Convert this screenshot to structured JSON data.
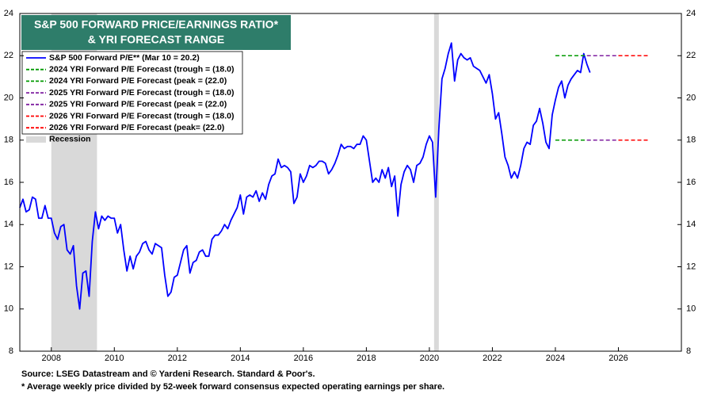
{
  "chart_data": {
    "type": "line",
    "title": [
      "S&P 500 FORWARD PRICE/EARNINGS RATIO*",
      "& YRI FORECAST RANGE"
    ],
    "notes": [
      "Source: LSEG Datastream and © Yardeni Research. Standard & Poor's.",
      "* Average weekly price divided by 52-week forward consensus expected operating earnings per share."
    ],
    "xlim": [
      2007,
      2028
    ],
    "xticks": [
      2008,
      2010,
      2012,
      2014,
      2016,
      2018,
      2020,
      2022,
      2024,
      2026
    ],
    "ylim": [
      8,
      24
    ],
    "yticks": [
      8,
      10,
      12,
      14,
      16,
      18,
      20,
      22,
      24
    ],
    "y2lim": [
      8,
      24
    ],
    "y2ticks": [
      8,
      10,
      12,
      14,
      16,
      18,
      20,
      22,
      24
    ],
    "grid": false,
    "legend": "upper left",
    "recession": {
      "name": "Recession",
      "color": "#d9d9d9",
      "ranges": [
        [
          2008.0,
          2009.45
        ],
        [
          2020.15,
          2020.3
        ]
      ]
    },
    "series": [
      {
        "name": "S&P 500 Forward P/E** (Mar 10 = 20.2)",
        "color": "#0000ff",
        "style": "solid",
        "x": [
          2007.0,
          2007.1,
          2007.2,
          2007.3,
          2007.4,
          2007.5,
          2007.6,
          2007.7,
          2007.8,
          2007.9,
          2008.0,
          2008.1,
          2008.2,
          2008.3,
          2008.4,
          2008.5,
          2008.6,
          2008.7,
          2008.8,
          2008.9,
          2009.0,
          2009.1,
          2009.2,
          2009.3,
          2009.4,
          2009.5,
          2009.6,
          2009.7,
          2009.8,
          2009.9,
          2010.0,
          2010.1,
          2010.2,
          2010.3,
          2010.4,
          2010.5,
          2010.6,
          2010.7,
          2010.8,
          2010.9,
          2011.0,
          2011.1,
          2011.2,
          2011.3,
          2011.4,
          2011.5,
          2011.6,
          2011.7,
          2011.8,
          2011.9,
          2012.0,
          2012.1,
          2012.2,
          2012.3,
          2012.4,
          2012.5,
          2012.6,
          2012.7,
          2012.8,
          2012.9,
          2013.0,
          2013.1,
          2013.2,
          2013.3,
          2013.4,
          2013.5,
          2013.6,
          2013.7,
          2013.8,
          2013.9,
          2014.0,
          2014.1,
          2014.2,
          2014.3,
          2014.4,
          2014.5,
          2014.6,
          2014.7,
          2014.8,
          2014.9,
          2015.0,
          2015.1,
          2015.2,
          2015.3,
          2015.4,
          2015.5,
          2015.6,
          2015.7,
          2015.8,
          2015.9,
          2016.0,
          2016.1,
          2016.2,
          2016.3,
          2016.4,
          2016.5,
          2016.6,
          2016.7,
          2016.8,
          2016.9,
          2017.0,
          2017.1,
          2017.2,
          2017.3,
          2017.4,
          2017.5,
          2017.6,
          2017.7,
          2017.8,
          2017.9,
          2018.0,
          2018.1,
          2018.2,
          2018.3,
          2018.4,
          2018.5,
          2018.6,
          2018.7,
          2018.8,
          2018.9,
          2019.0,
          2019.1,
          2019.2,
          2019.3,
          2019.4,
          2019.5,
          2019.6,
          2019.7,
          2019.8,
          2019.9,
          2020.0,
          2020.1,
          2020.2,
          2020.3,
          2020.4,
          2020.5,
          2020.6,
          2020.7,
          2020.8,
          2020.9,
          2021.0,
          2021.1,
          2021.2,
          2021.3,
          2021.4,
          2021.5,
          2021.6,
          2021.7,
          2021.8,
          2021.9,
          2022.0,
          2022.1,
          2022.2,
          2022.3,
          2022.4,
          2022.5,
          2022.6,
          2022.7,
          2022.8,
          2022.9,
          2023.0,
          2023.1,
          2023.2,
          2023.3,
          2023.4,
          2023.5,
          2023.6,
          2023.7,
          2023.8,
          2023.9,
          2024.0,
          2024.1,
          2024.2,
          2024.3,
          2024.4,
          2024.5,
          2024.6,
          2024.7,
          2024.8,
          2024.9,
          2025.0,
          2025.1
        ],
        "values": [
          14.8,
          15.2,
          14.6,
          14.7,
          15.3,
          15.2,
          14.3,
          14.3,
          14.9,
          14.3,
          14.3,
          13.6,
          13.3,
          13.9,
          14.0,
          12.8,
          12.6,
          13.0,
          11.1,
          10.0,
          11.7,
          11.8,
          10.6,
          13.2,
          14.6,
          13.8,
          14.4,
          14.2,
          14.4,
          14.3,
          14.3,
          13.6,
          14.0,
          12.8,
          11.8,
          12.5,
          11.9,
          12.5,
          12.7,
          13.1,
          13.2,
          12.8,
          12.6,
          13.1,
          13.0,
          12.9,
          11.6,
          10.6,
          10.8,
          11.5,
          11.6,
          12.2,
          12.8,
          13.0,
          11.7,
          12.2,
          12.3,
          12.7,
          12.8,
          12.5,
          12.5,
          13.3,
          13.5,
          13.5,
          13.7,
          14.0,
          13.8,
          14.2,
          14.5,
          14.8,
          15.4,
          14.5,
          15.3,
          15.4,
          15.3,
          15.6,
          15.1,
          15.5,
          15.2,
          15.9,
          16.3,
          16.4,
          17.1,
          16.7,
          16.8,
          16.7,
          16.5,
          15.0,
          15.3,
          16.4,
          16.0,
          16.3,
          16.8,
          16.7,
          16.8,
          17.0,
          17.0,
          16.9,
          16.4,
          16.6,
          16.9,
          17.3,
          17.8,
          17.6,
          17.7,
          17.7,
          17.6,
          17.8,
          17.8,
          18.2,
          18.0,
          17.0,
          16.0,
          16.2,
          16.0,
          16.6,
          16.2,
          16.7,
          15.8,
          16.3,
          14.4,
          15.9,
          16.5,
          16.8,
          16.6,
          16.0,
          16.8,
          16.9,
          17.2,
          17.8,
          18.2,
          17.9,
          15.3,
          18.5,
          20.9,
          21.4,
          22.1,
          22.6,
          20.8,
          21.8,
          22.1,
          21.9,
          21.8,
          21.9,
          21.5,
          21.4,
          21.3,
          21.0,
          20.7,
          21.1,
          20.2,
          19.0,
          19.3,
          18.3,
          17.2,
          16.8,
          16.2,
          16.5,
          16.2,
          16.8,
          17.6,
          17.9,
          17.8,
          18.7,
          18.9,
          19.5,
          18.8,
          17.9,
          17.6,
          19.2,
          19.9,
          20.5,
          20.8,
          20.0,
          20.6,
          20.9,
          21.1,
          21.3,
          21.2,
          22.1,
          21.6,
          21.2
        ]
      },
      {
        "name": "2024 YRI Forward P/E Forecast (trough = (18.0)",
        "color": "#009900",
        "style": "dashed",
        "x": [
          2024.0,
          2025.0
        ],
        "values": [
          18.0,
          18.0
        ]
      },
      {
        "name": "2024 YRI Forward P/E Forecast (peak = (22.0)",
        "color": "#009900",
        "style": "dashed",
        "x": [
          2024.0,
          2025.0
        ],
        "values": [
          22.0,
          22.0
        ]
      },
      {
        "name": "2025 YRI Forward P/E Forecast (trough = (18.0)",
        "color": "#7f1fa0",
        "style": "dashed",
        "x": [
          2025.0,
          2026.0
        ],
        "values": [
          18.0,
          18.0
        ]
      },
      {
        "name": "2025 YRI Forward P/E Forecast (peak = (22.0)",
        "color": "#7f1fa0",
        "style": "dashed",
        "x": [
          2025.0,
          2026.0
        ],
        "values": [
          22.0,
          22.0
        ]
      },
      {
        "name": "2026 YRI Forward P/E Forecast (trough = (18.0)",
        "color": "#ff0000",
        "style": "dashed",
        "x": [
          2026.0,
          2027.0
        ],
        "values": [
          18.0,
          18.0
        ]
      },
      {
        "name": "2026 YRI Forward P/E Forecast (peak= (22.0)",
        "color": "#ff0000",
        "style": "dashed",
        "x": [
          2026.0,
          2027.0
        ],
        "values": [
          22.0,
          22.0
        ]
      }
    ]
  }
}
